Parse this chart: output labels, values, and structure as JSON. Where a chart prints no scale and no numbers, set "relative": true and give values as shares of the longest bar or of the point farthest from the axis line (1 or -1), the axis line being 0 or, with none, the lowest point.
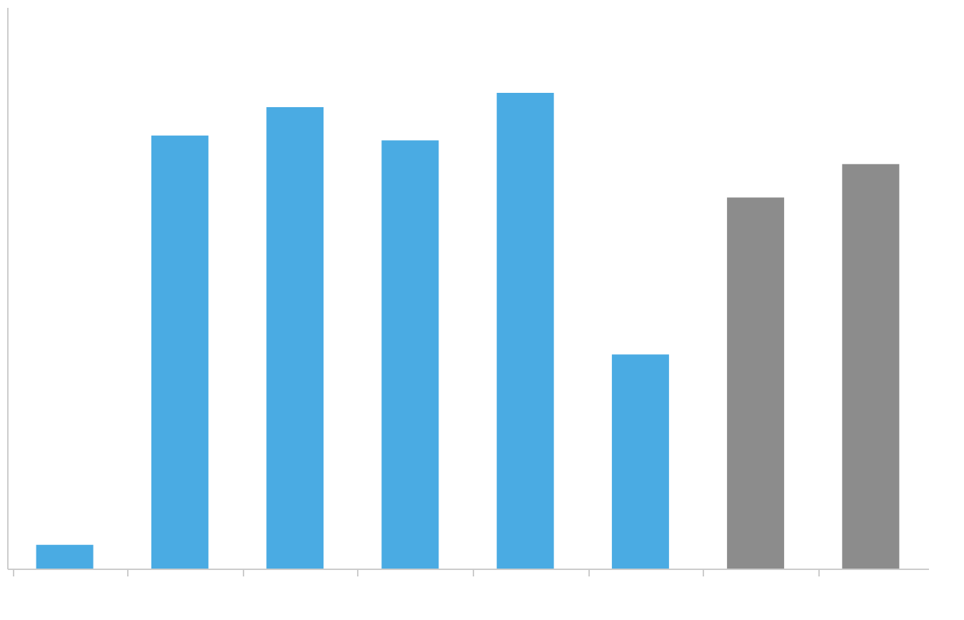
{
  "chart_data": {
    "type": "bar",
    "relative": true,
    "categories": [
      null,
      null,
      null,
      null,
      null,
      null,
      null,
      null
    ],
    "values": [
      0.05,
      0.91,
      0.97,
      0.9,
      1,
      0.45,
      0.78,
      0.85
    ],
    "colors": [
      "#4aabe3",
      "#4aabe3",
      "#4aabe3",
      "#4aabe3",
      "#4aabe3",
      "#4aabe3",
      "#8c8c8c",
      "#8c8c8c"
    ],
    "grid": false
  }
}
